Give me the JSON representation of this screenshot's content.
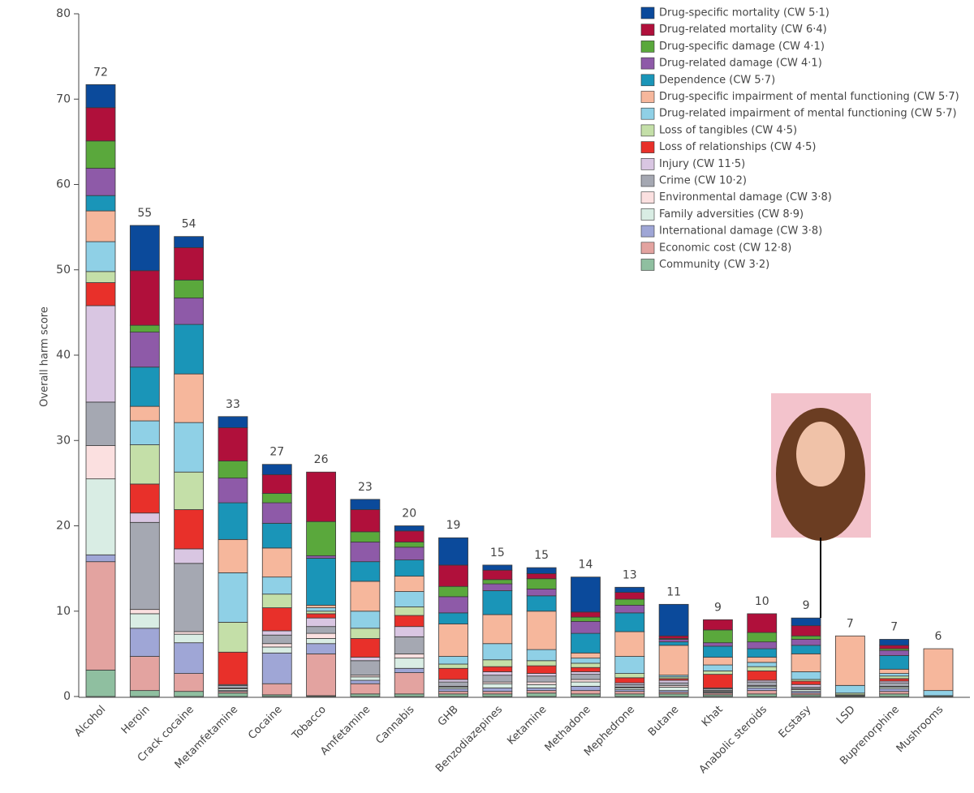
{
  "chart_data": {
    "type": "stacked_bar",
    "y_label": "Overall harm score",
    "categories": [
      "Alcohol",
      "Heroin",
      "Crack cocaine",
      "Metamfetamine",
      "Cocaine",
      "Tobacco",
      "Amfetamine",
      "Cannabis",
      "GHB",
      "Benzodiazepines",
      "Ketamine",
      "Methadone",
      "Mephedrone",
      "Butane",
      "Khat",
      "Anabolic steroids",
      "Ecstasy",
      "LSD",
      "Buprenorphine",
      "Mushrooms"
    ],
    "totals": [
      72,
      55,
      54,
      33,
      27,
      26,
      23,
      20,
      19,
      15,
      15,
      14,
      13,
      11,
      9,
      10,
      9,
      7,
      7,
      6
    ],
    "ylim": [
      0,
      80
    ],
    "yticks": [
      0,
      10,
      20,
      30,
      40,
      50,
      60,
      70,
      80
    ],
    "legend_position": "top-right",
    "series": [
      {
        "name": "Drug-specific mortality (CW 5·1)",
        "color": "#0b4a9b",
        "values": [
          2.7,
          5.3,
          1.3,
          1.3,
          1.2,
          0,
          1.2,
          0.6,
          3.2,
          0.6,
          0.7,
          4.1,
          0.6,
          3.7,
          0,
          0,
          0.9,
          0,
          0.7,
          0
        ]
      },
      {
        "name": "Drug-related mortality (CW 6·4)",
        "color": "#b0103b",
        "values": [
          3.9,
          6.4,
          3.8,
          3.9,
          2.2,
          5.8,
          2.6,
          1.3,
          2.5,
          1.1,
          0.6,
          0.6,
          0.8,
          0.3,
          1.2,
          2.2,
          1.2,
          0,
          0.4,
          0
        ]
      },
      {
        "name": "Drug-specific damage (CW 4·1)",
        "color": "#5aa83c",
        "values": [
          3.2,
          0.8,
          2.1,
          2.0,
          1.1,
          4.0,
          1.2,
          0.6,
          1.2,
          0.5,
          1.2,
          0.5,
          0.7,
          0.1,
          1.5,
          1.1,
          0.4,
          0,
          0.2,
          0
        ]
      },
      {
        "name": "Drug-related damage (CW 4·1)",
        "color": "#8e5aa8",
        "values": [
          3.2,
          4.1,
          3.1,
          2.9,
          2.4,
          0.3,
          2.3,
          1.5,
          1.9,
          0.8,
          0.8,
          1.4,
          0.9,
          0.3,
          0.4,
          0.8,
          0.7,
          0,
          0.6,
          0
        ]
      },
      {
        "name": "Dependence (CW 5·7)",
        "color": "#1a95b8",
        "values": [
          1.8,
          4.6,
          5.8,
          4.3,
          2.9,
          5.5,
          2.3,
          1.9,
          1.3,
          2.8,
          1.8,
          2.3,
          2.2,
          0.4,
          1.3,
          1.0,
          1.0,
          0,
          1.6,
          0
        ]
      },
      {
        "name": "Drug-specific impairment of mental functioning (CW 5·7)",
        "color": "#f6b79c",
        "values": [
          3.6,
          1.7,
          5.7,
          3.9,
          3.4,
          0.3,
          3.5,
          1.8,
          3.8,
          3.4,
          4.5,
          0.6,
          2.9,
          3.5,
          0.9,
          0.6,
          2.1,
          5.8,
          0.5,
          4.9
        ]
      },
      {
        "name": "Drug-related impairment of mental functioning (CW 5·7)",
        "color": "#8fd0e6",
        "values": [
          3.5,
          2.8,
          5.8,
          5.8,
          2.0,
          0.4,
          2.0,
          1.8,
          0.9,
          1.9,
          1.3,
          0.6,
          2.0,
          0.2,
          0.7,
          0.5,
          0.9,
          0.9,
          0.3,
          0.6
        ]
      },
      {
        "name": "Loss of tangibles (CW 4·5)",
        "color": "#c4dfa8",
        "values": [
          1.3,
          4.6,
          4.4,
          3.5,
          1.6,
          0.3,
          1.2,
          1.0,
          0.5,
          0.8,
          0.6,
          0.5,
          0.5,
          0.2,
          0.4,
          0.5,
          0.2,
          0.2,
          0.3,
          0
        ]
      },
      {
        "name": "Loss of relationships (CW 4·5)",
        "color": "#e8302a",
        "values": [
          2.7,
          3.4,
          4.6,
          3.8,
          2.7,
          0.5,
          2.2,
          1.3,
          1.3,
          0.6,
          0.9,
          0.5,
          0.6,
          0.2,
          1.6,
          1.1,
          0.4,
          0,
          0.3,
          0
        ]
      },
      {
        "name": "Injury (CW 11·5)",
        "color": "#d9c6e2",
        "values": [
          11.3,
          1.1,
          1.7,
          0.1,
          0.5,
          1.0,
          0.4,
          1.2,
          0.3,
          0.4,
          0.3,
          0.3,
          0.2,
          0.3,
          0.1,
          0.2,
          0.3,
          0.1,
          0.2,
          0
        ]
      },
      {
        "name": "Crime (CW 10·2)",
        "color": "#a5a8b2",
        "values": [
          5.1,
          10.2,
          8.0,
          0.3,
          1.0,
          0.8,
          1.7,
          2.0,
          0.5,
          0.8,
          0.7,
          0.6,
          0.3,
          0.3,
          0.2,
          0.4,
          0.2,
          0,
          0.4,
          0
        ]
      },
      {
        "name": "Environmental damage (CW 3·8)",
        "color": "#fbe0e0",
        "values": [
          3.9,
          0.5,
          0.3,
          0.1,
          0.4,
          0.6,
          0.2,
          0.5,
          0.1,
          0.2,
          0.3,
          0.3,
          0.1,
          0.2,
          0.1,
          0.1,
          0.1,
          0,
          0.1,
          0
        ]
      },
      {
        "name": "Family adversities (CW 8·9)",
        "color": "#d9ede4",
        "values": [
          8.9,
          1.7,
          1.0,
          0.2,
          0.7,
          0.6,
          0.4,
          1.2,
          0.2,
          0.5,
          0.4,
          0.5,
          0.2,
          0.4,
          0.1,
          0.2,
          0.2,
          0,
          0.2,
          0
        ]
      },
      {
        "name": "International damage (CW 3·8)",
        "color": "#9fa6d6",
        "values": [
          0.8,
          3.3,
          3.6,
          0.1,
          3.6,
          1.2,
          0.4,
          0.5,
          0.3,
          0.4,
          0.3,
          0.5,
          0.2,
          0.2,
          0.1,
          0.3,
          0.2,
          0,
          0.3,
          0
        ]
      },
      {
        "name": "Economic cost (CW 12·8)",
        "color": "#e3a3a0",
        "values": [
          12.7,
          4.0,
          2.1,
          0.2,
          1.3,
          4.9,
          1.2,
          2.5,
          0.3,
          0.3,
          0.3,
          0.4,
          0.3,
          0.2,
          0.2,
          0.4,
          0.2,
          0,
          0.3,
          0
        ]
      },
      {
        "name": "Community (CW 3·2)",
        "color": "#8fbfa0",
        "values": [
          3.1,
          0.7,
          0.6,
          0.4,
          0.2,
          0.1,
          0.3,
          0.3,
          0.3,
          0.3,
          0.4,
          0.3,
          0.3,
          0.3,
          0.2,
          0.3,
          0.2,
          0.1,
          0.3,
          0.1
        ]
      }
    ]
  }
}
